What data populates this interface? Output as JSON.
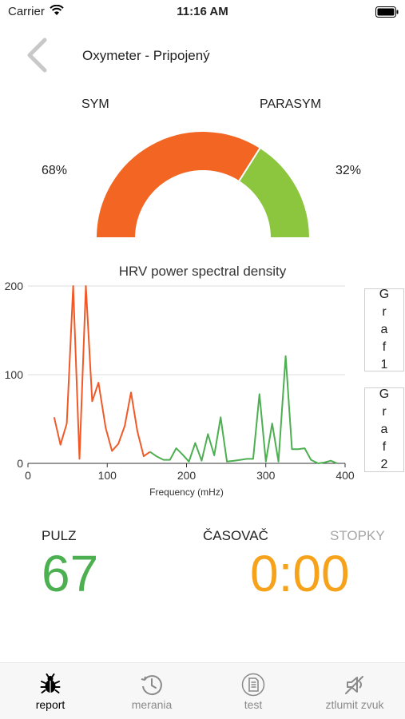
{
  "status_bar": {
    "carrier": "Carrier",
    "time": "11:16 AM"
  },
  "header": {
    "title": "Oxymeter - Pripojený"
  },
  "balance": {
    "left_label": "SYM",
    "right_label": "PARASYM",
    "left_percent": "68%",
    "right_percent": "32%",
    "left_value": 0.68,
    "right_value": 0.32,
    "left_color": "#f26522",
    "right_color": "#8cc63f"
  },
  "chart_data": {
    "type": "line",
    "title": "HRV power spectral density",
    "xlabel": "Frequency (mHz)",
    "ylabel": "",
    "xlim": [
      0,
      400
    ],
    "ylim": [
      0,
      200
    ],
    "x_ticks": [
      "0",
      "100",
      "200",
      "300",
      "400"
    ],
    "y_ticks": [
      "0",
      "100",
      "200"
    ],
    "grid": true,
    "series": [
      {
        "color": "#f05a28",
        "points": [
          [
            33,
            52
          ],
          [
            41,
            21
          ],
          [
            49,
            45
          ],
          [
            57,
            200
          ],
          [
            65,
            5
          ],
          [
            73,
            200
          ],
          [
            81,
            70
          ],
          [
            89,
            91
          ],
          [
            98,
            40
          ],
          [
            106,
            14
          ],
          [
            114,
            22
          ],
          [
            122,
            42
          ],
          [
            130,
            80
          ],
          [
            138,
            36
          ],
          [
            146,
            8
          ],
          [
            154,
            13
          ]
        ]
      },
      {
        "color": "#4caf50",
        "points": [
          [
            154,
            13
          ],
          [
            162,
            8
          ],
          [
            171,
            4
          ],
          [
            179,
            4
          ],
          [
            187,
            17
          ],
          [
            195,
            10
          ],
          [
            203,
            2
          ],
          [
            211,
            23
          ],
          [
            219,
            3
          ],
          [
            227,
            33
          ],
          [
            235,
            9
          ],
          [
            243,
            52
          ],
          [
            251,
            2
          ],
          [
            260,
            3
          ],
          [
            268,
            4
          ],
          [
            276,
            5
          ],
          [
            284,
            5
          ],
          [
            292,
            78
          ],
          [
            300,
            2
          ],
          [
            308,
            45
          ],
          [
            316,
            2
          ],
          [
            325,
            121
          ],
          [
            333,
            16
          ],
          [
            341,
            16
          ],
          [
            349,
            17
          ],
          [
            357,
            4
          ],
          [
            366,
            0
          ],
          [
            374,
            1
          ],
          [
            382,
            3
          ],
          [
            390,
            0
          ]
        ]
      }
    ]
  },
  "graf_buttons": [
    {
      "label": "Graf1",
      "letters": [
        "G",
        "r",
        "a",
        "f",
        "1"
      ]
    },
    {
      "label": "Graf2",
      "letters": [
        "G",
        "r",
        "a",
        "f",
        "2"
      ]
    }
  ],
  "metrics": {
    "pulse_label": "PULZ",
    "pulse_value": "67",
    "pulse_color": "#4caf50",
    "timer_label": "ČASOVAČ",
    "stopwatch_label": "STOPKY",
    "timer_value": "0:00",
    "timer_color": "#f7a21b"
  },
  "tab_bar": {
    "items": [
      {
        "label": "report",
        "icon": "bug-icon",
        "active": true
      },
      {
        "label": "merania",
        "icon": "history-icon",
        "active": false
      },
      {
        "label": "test",
        "icon": "document-icon",
        "active": false
      },
      {
        "label": "ztlumit zvuk",
        "icon": "mute-icon",
        "active": false
      }
    ]
  }
}
